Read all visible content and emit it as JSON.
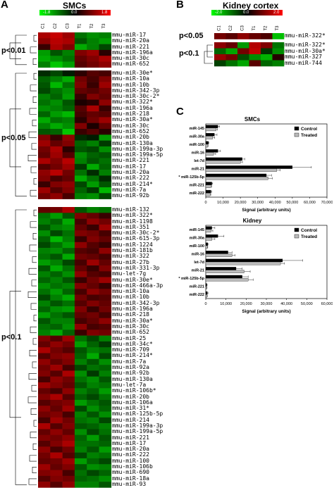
{
  "panels": {
    "A": {
      "letter": "A",
      "title": "SMCs",
      "scale": {
        "min": "-1.8",
        "mid": "0.0",
        "max": "1.8"
      },
      "columns": [
        "C1",
        "C2",
        "C3",
        "T1",
        "T2",
        "T3"
      ],
      "groups": [
        {
          "label": "p<0.01",
          "genes": [
            "mmu-miR-17",
            "mmu-miR-20a",
            "mmu-miR-221",
            "mmu-miR-196a",
            "mmu-miR-30c",
            "mmu-miR-652"
          ]
        },
        {
          "label": "p<0.05",
          "genes": [
            "mmu-miR-30e*",
            "mmu-miR-10a",
            "mmu-miR-10b",
            "mmu-miR-342-3p",
            "mmu-miR-30c-2*",
            "mmu-miR-322*",
            "mmu-miR-196a",
            "mmu-miR-218",
            "mmu-miR-30a*",
            "mmu-miR-30c",
            "mmu-miR-652",
            "mmu-miR-20b",
            "mmu-miR-130a",
            "mmu-miR-199a-3p",
            "mmu-miR-199a-5p",
            "mmu-miR-221",
            "mmu-miR-17",
            "mmu-miR-20a",
            "mmu-miR-222",
            "mmu-miR-214*",
            "mmu-miR-7a",
            "mmu-miR-92b"
          ]
        },
        {
          "label": "p<0.1",
          "genes": [
            "mmu-miR-132",
            "mmu-miR-322*",
            "mmu-miR-1198",
            "mmu-miR-351",
            "mmu-miR-30c-2*",
            "mmu-miR-615-3p",
            "mmu-miR-1224",
            "mmu-miR-181b",
            "mmu-miR-322",
            "mmu-miR-27b",
            "mmu-miR-331-3p",
            "mmu-let-7g",
            "mmu-miR-30e*",
            "mmu-miR-466a-3p",
            "mmu-miR-10a",
            "mmu-miR-10b",
            "mmu-miR-342-3p",
            "mmu-miR-196a",
            "mmu-miR-218",
            "mmu-miR-30a*",
            "mmu-miR-30c",
            "mmu-miR-652",
            "mmu-miR-25",
            "mmu-miR-34c*",
            "mmu-miR-709",
            "mmu-miR-214*",
            "mmu-miR-7a",
            "mmu-miR-92a",
            "mmu-miR-92b",
            "mmu-miR-130a",
            "mmu-let-7a",
            "mmu-miR-106b*",
            "mmu-miR-20b",
            "mmu-miR-106a",
            "mmu-miR-31*",
            "mmu-miR-125b-5p",
            "mmu-miR-214",
            "mmu-miR-199a-3p",
            "mmu-miR-199a-5p",
            "mmu-miR-221",
            "mmu-miR-17",
            "mmu-miR-20a",
            "mmu-miR-222",
            "mmu-miR-100",
            "mmu-miR-106b",
            "mmu-miR-690",
            "mmu-miR-18a",
            "mmu-miR-93"
          ]
        }
      ]
    },
    "B": {
      "letter": "B",
      "title": "Kidney cortex",
      "scale": {
        "min": "-2.0",
        "mid": "0.0",
        "max": "2.0"
      },
      "columns": [
        "C1",
        "C2",
        "C3",
        "T1",
        "T2",
        "T3"
      ],
      "groups": [
        {
          "label": "p<0.05",
          "genes": [
            "mmu-miR-322*"
          ]
        },
        {
          "label": "p<0.1",
          "genes": [
            "mmu-miR-322*",
            "mmu-miR-30a*",
            "mmu-miR-327",
            "mmu-miR-744"
          ]
        }
      ]
    },
    "C": {
      "letter": "C"
    }
  },
  "chart_data": [
    {
      "type": "heatmap",
      "title": "SMCs",
      "columns": [
        "C1",
        "C2",
        "C3",
        "T1",
        "T2",
        "T3"
      ],
      "color_scale": {
        "min": -1.8,
        "max": 1.8,
        "low_color": "#00ff00",
        "mid_color": "#000000",
        "high_color": "#ff0000"
      },
      "rows": [
        [
          1.2,
          1.4,
          1.1,
          -0.8,
          -1.0,
          -0.9
        ],
        [
          1.0,
          1.3,
          1.2,
          -0.6,
          -0.9,
          -1.1
        ],
        [
          0.4,
          1.2,
          0.9,
          -1.2,
          -0.9,
          -0.5
        ],
        [
          -1.1,
          -0.6,
          -0.9,
          0.9,
          1.1,
          0.3
        ],
        [
          -1.2,
          -1.0,
          -0.8,
          0.7,
          0.9,
          1.2
        ],
        [
          -0.9,
          -1.4,
          -1.1,
          0.6,
          0.8,
          1.0
        ],
        [
          -0.3,
          -0.5,
          -0.2,
          0.3,
          0.6,
          0.5
        ],
        [
          -0.7,
          -0.9,
          -1.2,
          0.8,
          0.5,
          0.9
        ],
        [
          -0.6,
          -1.3,
          -0.8,
          0.9,
          0.4,
          1.1
        ],
        [
          -0.5,
          -0.8,
          -1.0,
          0.7,
          0.6,
          0.8
        ],
        [
          -0.9,
          -0.7,
          -1.1,
          0.4,
          0.9,
          0.7
        ],
        [
          -0.8,
          -1.0,
          -0.6,
          0.2,
          0.3,
          1.0
        ],
        [
          -1.0,
          -0.9,
          -0.7,
          0.6,
          1.2,
          0.4
        ],
        [
          -0.7,
          -1.1,
          -1.3,
          0.5,
          0.7,
          0.6
        ],
        [
          -1.2,
          -0.8,
          -0.9,
          0.3,
          0.8,
          1.1
        ],
        [
          -0.9,
          -1.2,
          -1.0,
          0.9,
          0.2,
          0.7
        ],
        [
          -0.6,
          -0.7,
          -1.4,
          0.4,
          0.6,
          0.3
        ],
        [
          0.9,
          0.4,
          1.0,
          -0.3,
          -0.2,
          -1.1
        ],
        [
          1.1,
          0.7,
          0.9,
          -0.7,
          -0.9,
          -0.4
        ],
        [
          0.8,
          1.2,
          0.3,
          -0.6,
          -0.5,
          -1.0
        ],
        [
          0.7,
          1.1,
          0.6,
          -1.0,
          -0.7,
          -0.6
        ],
        [
          1.2,
          0.9,
          1.3,
          -0.9,
          -0.6,
          -0.8
        ],
        [
          0.6,
          0.8,
          1.1,
          -0.4,
          -1.2,
          -0.7
        ],
        [
          1.0,
          1.3,
          0.8,
          -0.8,
          -0.3,
          -0.9
        ],
        [
          0.9,
          0.5,
          0.7,
          -1.2,
          -0.8,
          -0.3
        ],
        [
          0.4,
          0.9,
          1.0,
          -0.5,
          -1.1,
          -0.6
        ],
        [
          1.1,
          0.6,
          0.9,
          -0.7,
          -0.4,
          -1.3
        ],
        [
          0.8,
          1.0,
          0.5,
          -0.9,
          -1.0,
          -0.5
        ],
        [
          0.7,
          0.8,
          1.2,
          -0.6,
          -0.9,
          -0.8
        ],
        [
          -0.8,
          -1.1,
          -0.6,
          0.9,
          0.7,
          0.4
        ],
        [
          -0.9,
          -0.7,
          -1.2,
          0.5,
          1.0,
          0.8
        ],
        [
          -0.6,
          -0.9,
          -1.0,
          0.7,
          0.4,
          1.1
        ],
        [
          -1.0,
          -0.5,
          -0.8,
          0.9,
          0.8,
          0.5
        ],
        [
          -0.7,
          -1.3,
          -0.9,
          0.4,
          0.9,
          0.7
        ],
        [
          -0.5,
          -0.8,
          -1.1,
          1.0,
          0.6,
          0.4
        ],
        [
          -0.9,
          -1.0,
          -0.7,
          0.6,
          0.5,
          1.0
        ],
        [
          -0.8,
          -0.6,
          -1.2,
          0.8,
          0.7,
          0.5
        ],
        [
          -1.1,
          -0.9,
          -0.5,
          0.5,
          1.1,
          0.7
        ],
        [
          -0.6,
          -1.2,
          -0.8,
          0.7,
          0.4,
          0.9
        ],
        [
          -0.9,
          -0.7,
          -1.0,
          1.0,
          0.6,
          0.5
        ],
        [
          -0.7,
          -0.9,
          -0.6,
          0.4,
          0.8,
          1.1
        ],
        [
          -1.0,
          -0.8,
          -0.9,
          0.9,
          0.7,
          0.4
        ],
        [
          -0.8,
          -1.1,
          -0.7,
          0.5,
          1.0,
          0.8
        ],
        [
          -0.5,
          -0.9,
          -1.2,
          0.8,
          0.5,
          0.6
        ],
        [
          -0.9,
          -0.6,
          -0.8,
          0.6,
          0.9,
          0.7
        ],
        [
          -0.7,
          -1.0,
          -1.1,
          0.9,
          0.4,
          0.8
        ],
        [
          -1.1,
          -0.8,
          -0.6,
          0.7,
          0.8,
          0.5
        ],
        [
          -0.6,
          -0.9,
          -0.9,
          0.5,
          0.7,
          1.0
        ],
        [
          -0.8,
          -0.7,
          -1.0,
          1.0,
          0.5,
          0.6
        ],
        [
          -0.9,
          -1.2,
          -0.7,
          0.4,
          0.9,
          0.8
        ],
        [
          0.9,
          0.6,
          1.1,
          -0.8,
          -0.5,
          -0.9
        ],
        [
          0.7,
          1.0,
          0.8,
          -1.1,
          -0.7,
          -0.4
        ],
        [
          1.2,
          0.8,
          0.6,
          -0.6,
          -0.9,
          -0.8
        ],
        [
          0.6,
          0.9,
          1.0,
          -0.7,
          -1.2,
          -0.5
        ],
        [
          1.0,
          0.7,
          0.9,
          -0.9,
          -0.6,
          -1.0
        ],
        [
          0.8,
          1.1,
          0.5,
          -0.5,
          -0.8,
          -0.7
        ],
        [
          0.9,
          0.6,
          1.2,
          -1.0,
          -0.4,
          -0.9
        ],
        [
          0.5,
          1.0,
          0.8,
          -0.8,
          -1.0,
          -0.6
        ],
        [
          1.1,
          0.9,
          0.7,
          -0.6,
          -0.9,
          -0.8
        ],
        [
          0.7,
          0.5,
          1.0,
          -0.9,
          -0.7,
          -1.1
        ],
        [
          0.9,
          1.2,
          0.6,
          -0.7,
          -0.5,
          -0.8
        ],
        [
          0.6,
          0.8,
          0.9,
          -1.1,
          -0.8,
          -0.6
        ],
        [
          1.0,
          0.7,
          1.1,
          -0.5,
          -1.0,
          -0.7
        ],
        [
          0.8,
          0.9,
          0.5,
          -0.9,
          -0.6,
          -1.0
        ],
        [
          0.5,
          1.1,
          0.8,
          -0.8,
          -0.9,
          -0.5
        ],
        [
          1.2,
          0.6,
          0.9,
          -0.6,
          -0.7,
          -0.9
        ],
        [
          0.7,
          1.0,
          0.7,
          -1.0,
          -0.5,
          -0.8
        ],
        [
          0.9,
          0.8,
          1.0,
          -0.7,
          -1.1,
          -0.6
        ],
        [
          0.6,
          0.9,
          1.2,
          -0.8,
          -0.8,
          -0.7
        ],
        [
          1.0,
          0.5,
          0.8,
          -0.9,
          -0.6,
          -1.1
        ],
        [
          0.8,
          1.2,
          0.6,
          -0.5,
          -0.9,
          -0.8
        ],
        [
          0.7,
          0.8,
          1.1,
          -1.1,
          -0.7,
          -0.5
        ],
        [
          1.1,
          0.7,
          0.9,
          -0.6,
          -1.0,
          -0.9
        ],
        [
          0.9,
          1.0,
          0.5,
          -0.8,
          -0.5,
          -0.7
        ],
        [
          0.6,
          0.9,
          0.8,
          -0.7,
          -0.8,
          -1.0
        ],
        [
          1.0,
          0.6,
          1.0,
          -0.9,
          -0.9,
          -0.6
        ]
      ]
    },
    {
      "type": "heatmap",
      "title": "Kidney cortex",
      "columns": [
        "C1",
        "C2",
        "C3",
        "T1",
        "T2",
        "T3"
      ],
      "color_scale": {
        "min": -2.0,
        "max": 2.0,
        "low_color": "#00ff00",
        "mid_color": "#000000",
        "high_color": "#ff0000"
      },
      "rows": [
        [
          0.9,
          0.7,
          1.1,
          0.8,
          0.6,
          -1.5
        ],
        [
          1.1,
          0.8,
          -1.2,
          1.4,
          1.0,
          -0.9
        ],
        [
          -0.8,
          -1.3,
          0.9,
          1.5,
          -0.4,
          -1.1
        ],
        [
          1.2,
          0.9,
          -0.6,
          -1.1,
          -1.4,
          0.3
        ],
        [
          -0.5,
          -0.9,
          -1.3,
          0.7,
          -0.8,
          -1.0
        ]
      ]
    },
    {
      "type": "bar",
      "title": "SMCs",
      "orientation": "horizontal",
      "categories": [
        "miR-145",
        "miR-30a",
        "miR-100",
        "miR-16",
        "let-7d",
        "miR-21",
        "* miR-125b-5p",
        "miR-221",
        "miR-222"
      ],
      "series": [
        {
          "name": "Control",
          "color": "#000000",
          "values": [
            7000,
            5000,
            1500,
            7000,
            21000,
            50000,
            35000,
            3500,
            3000
          ],
          "errors": [
            1000,
            1500,
            300,
            1500,
            1500,
            11000,
            3000,
            500,
            400
          ]
        },
        {
          "name": "Treated",
          "color": "#bbbbbb",
          "values": [
            6000,
            4000,
            1200,
            4500,
            20000,
            41000,
            36000,
            3000,
            2500
          ],
          "errors": [
            800,
            1200,
            200,
            1200,
            1200,
            2000,
            2500,
            400,
            400
          ]
        }
      ],
      "xlabel": "Signal (arbitrary units)",
      "xlim": [
        0,
        70000
      ],
      "xticks": [
        "0",
        "10,000",
        "20,000",
        "30,000",
        "40,000",
        "50,000",
        "60,000",
        "70,000"
      ],
      "legend_position": "top-right"
    },
    {
      "type": "bar",
      "title": "Kidney",
      "orientation": "horizontal",
      "categories": [
        "miR-145",
        "miR-30a",
        "miR-100",
        "miR-16",
        "let-7d",
        "miR-21",
        "* miR-125b-5p",
        "miR-221",
        "miR-222"
      ],
      "series": [
        {
          "name": "Control",
          "color": "#000000",
          "values": [
            3000,
            6000,
            1000,
            11000,
            38000,
            15000,
            18000,
            500,
            800
          ],
          "errors": [
            1500,
            3000,
            200,
            2000,
            10000,
            3000,
            3000,
            200,
            300
          ]
        },
        {
          "name": "Treated",
          "color": "#bbbbbb",
          "values": [
            2500,
            3000,
            800,
            13000,
            37000,
            19000,
            21000,
            400,
            600
          ],
          "errors": [
            1000,
            1500,
            200,
            1500,
            2000,
            3000,
            2500,
            200,
            200
          ]
        }
      ],
      "xlabel": "Signal (arbitrary units)",
      "xlim": [
        0,
        60000
      ],
      "xticks": [
        "0",
        "10,000",
        "20,000",
        "30,000",
        "40,000",
        "50,000",
        "60,000"
      ],
      "legend_position": "top-right"
    }
  ]
}
